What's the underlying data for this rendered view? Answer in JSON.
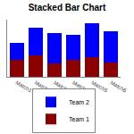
{
  "chart_data": {
    "type": "bar",
    "title": "Stacked Bar Chart",
    "categories": [
      "Match1",
      "Match2",
      "Match3",
      "Match4",
      "Match5",
      "Match6"
    ],
    "series": [
      {
        "name": "Team 1",
        "color": "#8b0000",
        "values": [
          33,
          41,
          25,
          33,
          38,
          28
        ]
      },
      {
        "name": "Team 2",
        "color": "#0000ff",
        "values": [
          33,
          54,
          60,
          47,
          65,
          60
        ]
      }
    ],
    "ylim": [
      0,
      110
    ],
    "yticks": [
      0
    ],
    "stacked": true,
    "grid": false,
    "legend": "bottom",
    "tick_labels": "x"
  }
}
